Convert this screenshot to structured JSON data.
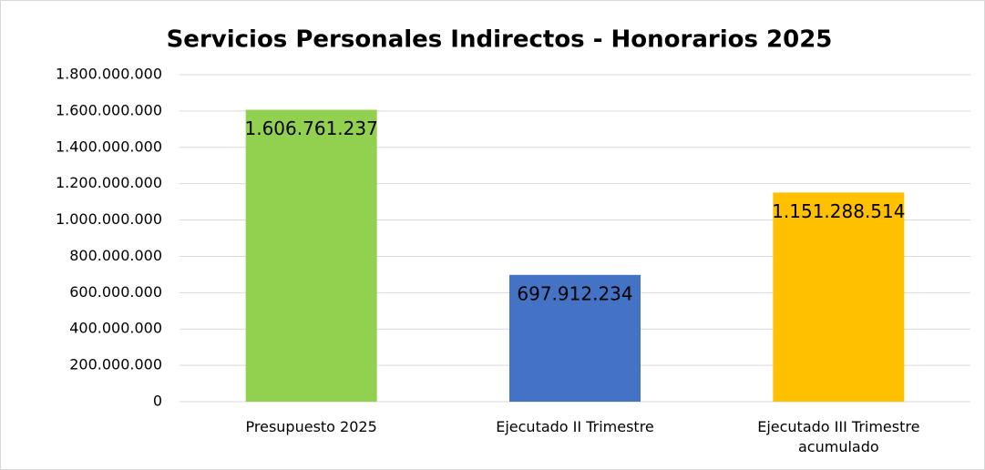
{
  "chart_data": {
    "type": "bar",
    "title": "Servicios Personales Indirectos - Honorarios 2025",
    "categories": [
      "Presupuesto 2025",
      "Ejecutado II Trimestre",
      "Ejecutado III Trimestre acumulado"
    ],
    "values": [
      1606761237,
      697912234,
      1151288514
    ],
    "value_labels": [
      "1.606.761.237",
      "697.912.234",
      "1.151.288.514"
    ],
    "colors": [
      "#92d050",
      "#4472c4",
      "#ffc000"
    ],
    "ylim": [
      0,
      1800000000
    ],
    "yticks": [
      0,
      {
        "value": 200000000,
        "label": "200.000.000"
      },
      {
        "value": 400000000,
        "label": "400.000.000"
      },
      {
        "value": 600000000,
        "label": "600.000.000"
      },
      {
        "value": 800000000,
        "label": "800.000.000"
      },
      {
        "value": 1000000000,
        "label": "1.000.000.000"
      },
      {
        "value": 1200000000,
        "label": "1.200.000.000"
      },
      {
        "value": 1400000000,
        "label": "1.400.000.000"
      },
      {
        "value": 1600000000,
        "label": "1.600.000.000"
      },
      {
        "value": 1800000000,
        "label": "1.800.000.000"
      }
    ],
    "grid": true
  }
}
